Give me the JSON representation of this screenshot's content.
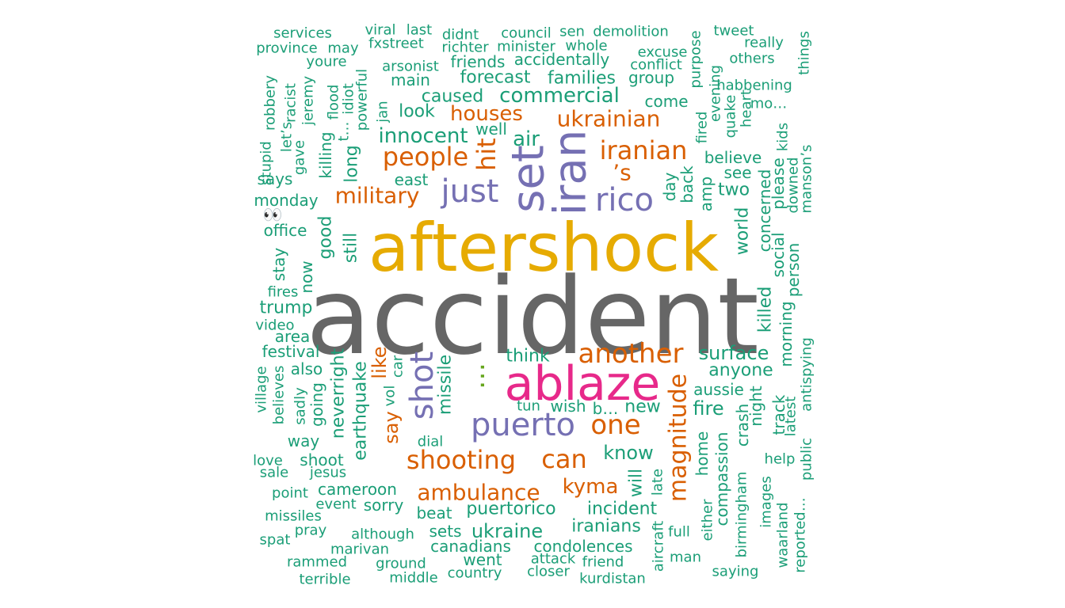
{
  "colors": {
    "gray": "#666666",
    "gold": "#E6AB02",
    "pink": "#E7298A",
    "purple": "#7570B3",
    "orange": "#D95F02",
    "green": "#1B9E77",
    "olive": "#66A61E"
  },
  "words": [
    {
      "text": "accident",
      "color": "gray"
    },
    {
      "text": "aftershock",
      "color": "gold"
    },
    {
      "text": "ablaze",
      "color": "pink"
    },
    {
      "text": "iran",
      "color": "purple"
    },
    {
      "text": "set",
      "color": "purple"
    },
    {
      "text": "rico",
      "color": "purple"
    },
    {
      "text": "just",
      "color": "purple"
    },
    {
      "text": "shot",
      "color": "purple"
    },
    {
      "text": "puerto",
      "color": "purple"
    },
    {
      "text": "…",
      "color": "olive"
    },
    {
      "text": "another",
      "color": "orange"
    },
    {
      "text": "one",
      "color": "orange"
    },
    {
      "text": "magnitude",
      "color": "orange"
    },
    {
      "text": "shooting",
      "color": "orange"
    },
    {
      "text": "can",
      "color": "orange"
    },
    {
      "text": "ambulance",
      "color": "orange"
    },
    {
      "text": "kyma",
      "color": "orange"
    },
    {
      "text": "people",
      "color": "orange"
    },
    {
      "text": "hit",
      "color": "orange"
    },
    {
      "text": "iranian",
      "color": "orange"
    },
    {
      "text": "’s",
      "color": "orange"
    },
    {
      "text": "ukrainian",
      "color": "orange"
    },
    {
      "text": "houses",
      "color": "orange"
    },
    {
      "text": "military",
      "color": "orange"
    },
    {
      "text": "like",
      "color": "orange"
    },
    {
      "text": "say",
      "color": "orange"
    },
    {
      "text": "services",
      "color": "green"
    },
    {
      "text": "viral",
      "color": "green"
    },
    {
      "text": "last",
      "color": "green"
    },
    {
      "text": "didnt",
      "color": "green"
    },
    {
      "text": "council",
      "color": "green"
    },
    {
      "text": "sen",
      "color": "green"
    },
    {
      "text": "demolition",
      "color": "green"
    },
    {
      "text": "tweet",
      "color": "green"
    },
    {
      "text": "province",
      "color": "green"
    },
    {
      "text": "may",
      "color": "green"
    },
    {
      "text": "fxstreet",
      "color": "green"
    },
    {
      "text": "richter",
      "color": "green"
    },
    {
      "text": "minister",
      "color": "green"
    },
    {
      "text": "whole",
      "color": "green"
    },
    {
      "text": "excuse",
      "color": "green"
    },
    {
      "text": "really",
      "color": "green"
    },
    {
      "text": "youre",
      "color": "green"
    },
    {
      "text": "arsonist",
      "color": "green"
    },
    {
      "text": "friends",
      "color": "green"
    },
    {
      "text": "accidentally",
      "color": "green"
    },
    {
      "text": "conflict",
      "color": "green"
    },
    {
      "text": "others",
      "color": "green"
    },
    {
      "text": "main",
      "color": "green"
    },
    {
      "text": "forecast",
      "color": "green"
    },
    {
      "text": "families",
      "color": "green"
    },
    {
      "text": "group",
      "color": "green"
    },
    {
      "text": "habbening",
      "color": "green"
    },
    {
      "text": "caused",
      "color": "green"
    },
    {
      "text": "commercial",
      "color": "green"
    },
    {
      "text": "come",
      "color": "green"
    },
    {
      "text": "mo…",
      "color": "green"
    },
    {
      "text": "look",
      "color": "green"
    },
    {
      "text": "well",
      "color": "green"
    },
    {
      "text": "innocent",
      "color": "green"
    },
    {
      "text": "air",
      "color": "green"
    },
    {
      "text": "believe",
      "color": "green"
    },
    {
      "text": "see",
      "color": "green"
    },
    {
      "text": "east",
      "color": "green"
    },
    {
      "text": "two",
      "color": "green"
    },
    {
      "text": "says",
      "color": "green"
    },
    {
      "text": "monday",
      "color": "green"
    },
    {
      "text": "👀",
      "color": "green"
    },
    {
      "text": "office",
      "color": "green"
    },
    {
      "text": "fires",
      "color": "green"
    },
    {
      "text": "trump",
      "color": "green"
    },
    {
      "text": "video",
      "color": "green"
    },
    {
      "text": "area",
      "color": "green"
    },
    {
      "text": "festival",
      "color": "green"
    },
    {
      "text": "also",
      "color": "green"
    },
    {
      "text": "think",
      "color": "green"
    },
    {
      "text": "surface",
      "color": "green"
    },
    {
      "text": "anyone",
      "color": "green"
    },
    {
      "text": "aussie",
      "color": "green"
    },
    {
      "text": "fire",
      "color": "green"
    },
    {
      "text": "tun",
      "color": "green"
    },
    {
      "text": "wish",
      "color": "green"
    },
    {
      "text": "b…",
      "color": "green"
    },
    {
      "text": "new",
      "color": "green"
    },
    {
      "text": "know",
      "color": "green"
    },
    {
      "text": "way",
      "color": "green"
    },
    {
      "text": "dial",
      "color": "green"
    },
    {
      "text": "love",
      "color": "green"
    },
    {
      "text": "shoot",
      "color": "green"
    },
    {
      "text": "sale",
      "color": "green"
    },
    {
      "text": "jesus",
      "color": "green"
    },
    {
      "text": "help",
      "color": "green"
    },
    {
      "text": "point",
      "color": "green"
    },
    {
      "text": "cameroon",
      "color": "green"
    },
    {
      "text": "event",
      "color": "green"
    },
    {
      "text": "sorry",
      "color": "green"
    },
    {
      "text": "beat",
      "color": "green"
    },
    {
      "text": "puertorico",
      "color": "green"
    },
    {
      "text": "incident",
      "color": "green"
    },
    {
      "text": "missiles",
      "color": "green"
    },
    {
      "text": "pray",
      "color": "green"
    },
    {
      "text": "sets",
      "color": "green"
    },
    {
      "text": "ukraine",
      "color": "green"
    },
    {
      "text": "iranians",
      "color": "green"
    },
    {
      "text": "full",
      "color": "green"
    },
    {
      "text": "spat",
      "color": "green"
    },
    {
      "text": "although",
      "color": "green"
    },
    {
      "text": "marivan",
      "color": "green"
    },
    {
      "text": "canadians",
      "color": "green"
    },
    {
      "text": "condolences",
      "color": "green"
    },
    {
      "text": "man",
      "color": "green"
    },
    {
      "text": "rammed",
      "color": "green"
    },
    {
      "text": "ground",
      "color": "green"
    },
    {
      "text": "went",
      "color": "green"
    },
    {
      "text": "attack",
      "color": "green"
    },
    {
      "text": "friend",
      "color": "green"
    },
    {
      "text": "closer",
      "color": "green"
    },
    {
      "text": "saying",
      "color": "green"
    },
    {
      "text": "terrible",
      "color": "green"
    },
    {
      "text": "middle",
      "color": "green"
    },
    {
      "text": "country",
      "color": "green"
    },
    {
      "text": "kurdistan",
      "color": "green"
    },
    {
      "text": "robbery",
      "color": "green"
    },
    {
      "text": "stupid",
      "color": "green"
    },
    {
      "text": "let’s",
      "color": "green"
    },
    {
      "text": "racist",
      "color": "green"
    },
    {
      "text": "gave",
      "color": "green"
    },
    {
      "text": "jeremy",
      "color": "green"
    },
    {
      "text": "killing",
      "color": "green"
    },
    {
      "text": "flood",
      "color": "green"
    },
    {
      "text": "long",
      "color": "green"
    },
    {
      "text": "t…",
      "color": "green"
    },
    {
      "text": "idiot",
      "color": "green"
    },
    {
      "text": "powerful",
      "color": "green"
    },
    {
      "text": "jan",
      "color": "green"
    },
    {
      "text": "purpose",
      "color": "green"
    },
    {
      "text": "evening",
      "color": "green"
    },
    {
      "text": "fired",
      "color": "green"
    },
    {
      "text": "quake",
      "color": "green"
    },
    {
      "text": "heart",
      "color": "green"
    },
    {
      "text": "things",
      "color": "green"
    },
    {
      "text": "kids",
      "color": "green"
    },
    {
      "text": "manson’s",
      "color": "green"
    },
    {
      "text": "downed",
      "color": "green"
    },
    {
      "text": "please",
      "color": "green"
    },
    {
      "text": "concerned",
      "color": "green"
    },
    {
      "text": "social",
      "color": "green"
    },
    {
      "text": "person",
      "color": "green"
    },
    {
      "text": "world",
      "color": "green"
    },
    {
      "text": "amp",
      "color": "green"
    },
    {
      "text": "back",
      "color": "green"
    },
    {
      "text": "day",
      "color": "green"
    },
    {
      "text": "good",
      "color": "green"
    },
    {
      "text": "still",
      "color": "green"
    },
    {
      "text": "stay",
      "color": "green"
    },
    {
      "text": "now",
      "color": "green"
    },
    {
      "text": "killed",
      "color": "green"
    },
    {
      "text": "morning",
      "color": "green"
    },
    {
      "text": "antispying",
      "color": "green"
    },
    {
      "text": "public",
      "color": "green"
    },
    {
      "text": "latest",
      "color": "green"
    },
    {
      "text": "track",
      "color": "green"
    },
    {
      "text": "night",
      "color": "green"
    },
    {
      "text": "crash",
      "color": "green"
    },
    {
      "text": "village",
      "color": "green"
    },
    {
      "text": "believes",
      "color": "green"
    },
    {
      "text": "sadly",
      "color": "green"
    },
    {
      "text": "going",
      "color": "green"
    },
    {
      "text": "neverright",
      "color": "green"
    },
    {
      "text": "earthquake",
      "color": "green"
    },
    {
      "text": "vol",
      "color": "green"
    },
    {
      "text": "car",
      "color": "green"
    },
    {
      "text": "missile",
      "color": "green"
    },
    {
      "text": "home",
      "color": "green"
    },
    {
      "text": "compassion",
      "color": "green"
    },
    {
      "text": "birmingham",
      "color": "green"
    },
    {
      "text": "images",
      "color": "green"
    },
    {
      "text": "waarland",
      "color": "green"
    },
    {
      "text": "reported…",
      "color": "green"
    },
    {
      "text": "will",
      "color": "green"
    },
    {
      "text": "late",
      "color": "green"
    },
    {
      "text": "aircraft",
      "color": "green"
    },
    {
      "text": "either",
      "color": "green"
    }
  ]
}
